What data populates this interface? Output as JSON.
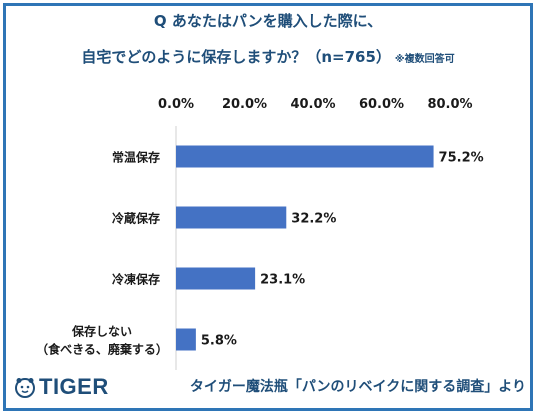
{
  "header": {
    "title_line1": "Q あなたはパンを購入した際に、",
    "title_line2": "自宅でどのように保存しますか？（n=765）",
    "note": "※複数回答可"
  },
  "chart_data": {
    "type": "bar",
    "orientation": "horizontal",
    "categories": [
      "常温保存",
      "冷蔵保存",
      "冷凍保存",
      "保存しない（食べきる、廃棄する）"
    ],
    "category_lines": [
      [
        "常温保存"
      ],
      [
        "冷蔵保存"
      ],
      [
        "冷凍保存"
      ],
      [
        "保存しない",
        "（食べきる、廃棄する）"
      ]
    ],
    "values": [
      75.2,
      32.2,
      23.1,
      5.8
    ],
    "value_labels": [
      "75.2%",
      "32.2%",
      "23.1%",
      "5.8%"
    ],
    "xlim": [
      0,
      80
    ],
    "ticks": [
      0,
      20,
      40,
      60,
      80
    ],
    "tick_labels": [
      "0.0%",
      "20.0%",
      "40.0%",
      "60.0%",
      "80.0%"
    ],
    "axis_position": "top",
    "grid": false,
    "bar_color": "#4472c4"
  },
  "footer": {
    "logo_text": "TIGER",
    "source": "タイガー魔法瓶「パンのリベイクに関する調査」より"
  }
}
